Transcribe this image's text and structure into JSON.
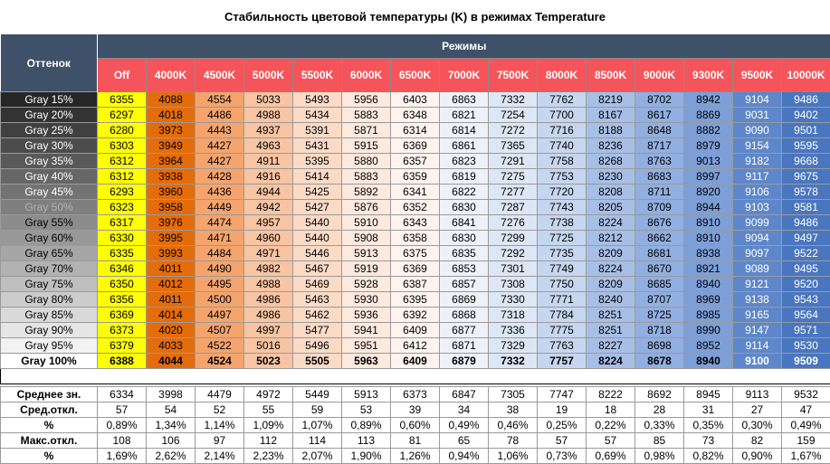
{
  "title": "Стабильность цветовой температуры (K) в режимах Temperature",
  "table": {
    "corner": "Оттенок",
    "group": "Режимы",
    "columns": [
      "Off",
      "4000K",
      "4500K",
      "5000K",
      "5500K",
      "6000K",
      "6500K",
      "7000K",
      "7500K",
      "8000K",
      "8500K",
      "9000K",
      "9300K",
      "9500K",
      "10000K"
    ],
    "rows": [
      {
        "label": "Gray 15%",
        "values": [
          6355,
          4088,
          4554,
          5033,
          5493,
          5956,
          6403,
          6863,
          7332,
          7762,
          8219,
          8702,
          8942,
          9104,
          9486
        ]
      },
      {
        "label": "Gray 20%",
        "values": [
          6297,
          4018,
          4486,
          4988,
          5434,
          5883,
          6348,
          6821,
          7254,
          7700,
          8167,
          8617,
          8869,
          9031,
          9402
        ]
      },
      {
        "label": "Gray 25%",
        "values": [
          6280,
          3973,
          4443,
          4937,
          5391,
          5871,
          6314,
          6814,
          7272,
          7716,
          8188,
          8648,
          8882,
          9090,
          9501
        ]
      },
      {
        "label": "Gray 30%",
        "values": [
          6303,
          3949,
          4427,
          4963,
          5431,
          5915,
          6369,
          6861,
          7365,
          7740,
          8236,
          8717,
          8979,
          9154,
          9595
        ]
      },
      {
        "label": "Gray 35%",
        "values": [
          6312,
          3964,
          4427,
          4911,
          5395,
          5880,
          6357,
          6823,
          7291,
          7758,
          8268,
          8763,
          9013,
          9182,
          9668
        ]
      },
      {
        "label": "Gray 40%",
        "values": [
          6312,
          3938,
          4428,
          4916,
          5414,
          5883,
          6359,
          6819,
          7275,
          7753,
          8230,
          8683,
          8997,
          9117,
          9675
        ]
      },
      {
        "label": "Gray 45%",
        "values": [
          6293,
          3960,
          4436,
          4944,
          5425,
          5892,
          6341,
          6822,
          7277,
          7720,
          8208,
          8711,
          8920,
          9106,
          9578
        ]
      },
      {
        "label": "Gray 50%",
        "values": [
          6323,
          3958,
          4449,
          4942,
          5427,
          5876,
          6352,
          6830,
          7287,
          7743,
          8205,
          8709,
          8944,
          9103,
          9581
        ]
      },
      {
        "label": "Gray 55%",
        "values": [
          6317,
          3976,
          4474,
          4957,
          5440,
          5910,
          6343,
          6841,
          7276,
          7738,
          8224,
          8676,
          8910,
          9099,
          9486
        ]
      },
      {
        "label": "Gray 60%",
        "values": [
          6330,
          3995,
          4471,
          4960,
          5440,
          5908,
          6358,
          6830,
          7299,
          7725,
          8212,
          8662,
          8910,
          9094,
          9497
        ]
      },
      {
        "label": "Gray 65%",
        "values": [
          6335,
          3993,
          4484,
          4971,
          5446,
          5913,
          6375,
          6835,
          7292,
          7735,
          8209,
          8681,
          8938,
          9097,
          9522
        ]
      },
      {
        "label": "Gray 70%",
        "values": [
          6346,
          4011,
          4490,
          4982,
          5467,
          5919,
          6369,
          6853,
          7301,
          7749,
          8224,
          8670,
          8921,
          9089,
          9495
        ]
      },
      {
        "label": "Gray 75%",
        "values": [
          6350,
          4012,
          4495,
          4988,
          5469,
          5928,
          6387,
          6857,
          7308,
          7750,
          8209,
          8685,
          8940,
          9121,
          9520
        ]
      },
      {
        "label": "Gray 80%",
        "values": [
          6356,
          4011,
          4500,
          4986,
          5463,
          5930,
          6395,
          6869,
          7330,
          7771,
          8240,
          8707,
          8969,
          9138,
          9543
        ]
      },
      {
        "label": "Gray 85%",
        "values": [
          6369,
          4014,
          4497,
          4986,
          5462,
          5936,
          6392,
          6868,
          7318,
          7784,
          8251,
          8725,
          8985,
          9165,
          9564
        ]
      },
      {
        "label": "Gray 90%",
        "values": [
          6373,
          4020,
          4507,
          4997,
          5477,
          5941,
          6409,
          6877,
          7336,
          7775,
          8251,
          8718,
          8990,
          9147,
          9571
        ]
      },
      {
        "label": "Gray 95%",
        "values": [
          6379,
          4033,
          4522,
          5016,
          5496,
          5951,
          6412,
          6871,
          7329,
          7763,
          8227,
          8698,
          8952,
          9114,
          9530
        ]
      },
      {
        "label": "Gray 100%",
        "values": [
          6388,
          4044,
          4524,
          5023,
          5505,
          5963,
          6409,
          6879,
          7332,
          7757,
          8224,
          8678,
          8940,
          9100,
          9509
        ]
      }
    ],
    "stats": [
      {
        "label": "Среднее зн.",
        "values": [
          6334,
          3998,
          4479,
          4972,
          5449,
          5913,
          6373,
          6847,
          7305,
          7747,
          8222,
          8692,
          8945,
          9113,
          9532
        ]
      },
      {
        "label": "Сред.откл.",
        "values": [
          57,
          54,
          52,
          55,
          59,
          53,
          39,
          34,
          38,
          19,
          18,
          28,
          31,
          27,
          47
        ]
      },
      {
        "label": "%",
        "values": [
          "0,89%",
          "1,34%",
          "1,14%",
          "1,09%",
          "1,07%",
          "0,89%",
          "0,60%",
          "0,49%",
          "0,46%",
          "0,25%",
          "0,22%",
          "0,33%",
          "0,35%",
          "0,30%",
          "0,49%"
        ]
      },
      {
        "label": "Макс.откл.",
        "values": [
          108,
          106,
          97,
          112,
          114,
          113,
          81,
          65,
          78,
          57,
          57,
          85,
          73,
          82,
          159
        ]
      },
      {
        "label": "%",
        "values": [
          "1,69%",
          "2,62%",
          "2,14%",
          "2,23%",
          "2,07%",
          "1,90%",
          "1,26%",
          "0,94%",
          "1,06%",
          "0,73%",
          "0,69%",
          "0,98%",
          "0,82%",
          "0,90%",
          "1,67%"
        ]
      }
    ]
  }
}
